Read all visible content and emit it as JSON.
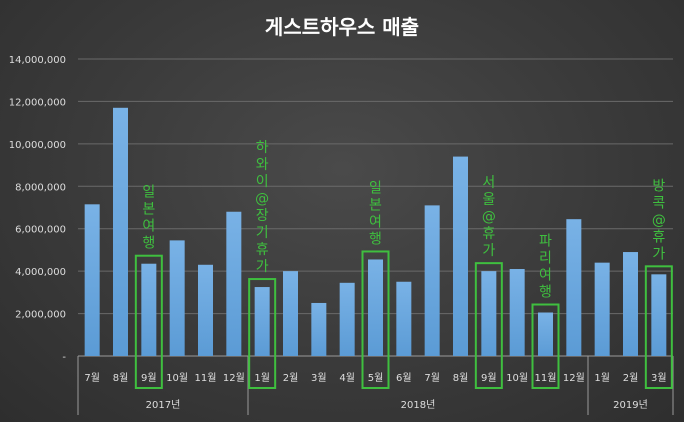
{
  "chart_data": {
    "type": "bar",
    "title": "게스트하우스 매출",
    "ylim": [
      0,
      14000000
    ],
    "y_ticks": [
      0,
      2000000,
      4000000,
      6000000,
      8000000,
      10000000,
      12000000,
      14000000
    ],
    "y_tick_labels": [
      "-",
      "2,000,000",
      "4,000,000",
      "6,000,000",
      "8,000,000",
      "10,000,000",
      "12,000,000",
      "14,000,000"
    ],
    "grid": true,
    "legend": "none",
    "bar_color": "#5b9bd5",
    "highlight_color": "#3fbf3f",
    "categories": [
      "7월",
      "8월",
      "9월",
      "10월",
      "11월",
      "12월",
      "1월",
      "2월",
      "3월",
      "4월",
      "5월",
      "6월",
      "7월",
      "8월",
      "9월",
      "10월",
      "11월",
      "12월",
      "1월",
      "2월",
      "3월"
    ],
    "values": [
      7150000,
      11700000,
      4350000,
      5450000,
      4300000,
      6800000,
      3250000,
      4000000,
      2500000,
      3450000,
      4550000,
      3500000,
      7100000,
      9400000,
      4000000,
      4100000,
      2050000,
      6450000,
      4400000,
      4900000,
      3850000
    ],
    "groups": [
      {
        "label": "2017년",
        "start": 0,
        "end": 5
      },
      {
        "label": "2018년",
        "start": 6,
        "end": 17
      },
      {
        "label": "2019년",
        "start": 18,
        "end": 20
      }
    ],
    "annotations": [
      {
        "index": 2,
        "text": "일본여행"
      },
      {
        "index": 6,
        "text": "하와이@장기휴가"
      },
      {
        "index": 10,
        "text": "일본여행"
      },
      {
        "index": 14,
        "text": "서울@휴가"
      },
      {
        "index": 16,
        "text": "파리여행"
      },
      {
        "index": 20,
        "text": "방콕@휴가"
      }
    ]
  }
}
